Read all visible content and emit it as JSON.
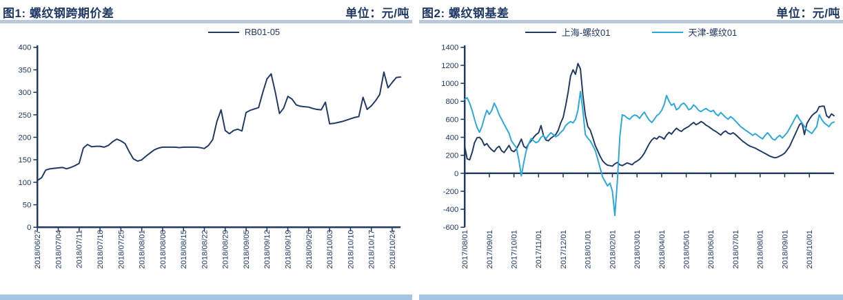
{
  "colors": {
    "axis": "#1F3864",
    "title_text": "#1F3864",
    "divider_bar": "#B9C8DB",
    "bottom_bar": "#A3C4E3",
    "navy_series": "#1F3864",
    "lightblue_series": "#29A8E0"
  },
  "charts": [
    {
      "title": "图1: 螺纹钢跨期价差",
      "unit_label": "单位：元/吨",
      "chart_data": {
        "type": "line",
        "title": "图1: 螺纹钢跨期价差",
        "unit": "元/吨",
        "ylim": [
          0,
          400
        ],
        "y_step": 50,
        "grid": false,
        "legend_position": "top-center",
        "x_tick_labels": [
          "2018/06/27",
          "2018/07/04",
          "2018/07/11",
          "2018/07/18",
          "2018/07/25",
          "2018/08/01",
          "2018/08/08",
          "2018/08/15",
          "2018/08/22",
          "2018/08/29",
          "2018/09/05",
          "2018/09/12",
          "2018/09/19",
          "2018/09/26",
          "2018/10/03",
          "2018/10/10",
          "2018/10/17",
          "2018/10/24"
        ],
        "x_tick_every": 5,
        "series": [
          {
            "name": "RB01-05",
            "color": "#1F3864",
            "values": [
              104,
              110,
              127,
              130,
              131,
              132,
              133,
              130,
              133,
              137,
              142,
              176,
              184,
              179,
              180,
              180,
              178,
              182,
              190,
              196,
              192,
              186,
              168,
              152,
              147,
              150,
              158,
              165,
              172,
              176,
              178,
              178,
              178,
              178,
              177,
              178,
              178,
              178,
              178,
              177,
              175,
              182,
              195,
              235,
              261,
              215,
              208,
              215,
              218,
              214,
              255,
              260,
              263,
              266,
              300,
              330,
              341,
              300,
              253,
              265,
              291,
              285,
              272,
              269,
              268,
              267,
              264,
              262,
              261,
              278,
              230,
              231,
              233,
              235,
              238,
              241,
              244,
              246,
              289,
              262,
              270,
              281,
              295,
              345,
              310,
              322,
              333,
              334
            ]
          }
        ]
      }
    },
    {
      "title": "图2: 螺纹钢基差",
      "unit_label": "单位：元/吨",
      "chart_data": {
        "type": "line",
        "title": "图2: 螺纹钢基差",
        "unit": "元/吨",
        "ylim": [
          -600,
          1400
        ],
        "y_step": 200,
        "grid": false,
        "legend_position": "top-center",
        "x_tick_labels": [
          "2017/08/01",
          "2017/09/01",
          "2017/10/01",
          "2017/11/01",
          "2017/12/01",
          "2018/01/01",
          "2018/02/01",
          "2018/03/01",
          "2018/04/01",
          "2018/05/01",
          "2018/06/01",
          "2018/07/01",
          "2018/08/01",
          "2018/09/01",
          "2018/10/01"
        ],
        "x_tick_every": 10,
        "series": [
          {
            "name": "上海-螺纹01",
            "color": "#1F3864",
            "values": [
              300,
              160,
              150,
              230,
              340,
              395,
              400,
              370,
              310,
              330,
              290,
              260,
              240,
              280,
              300,
              250,
              230,
              270,
              310,
              255,
              240,
              270,
              320,
              380,
              300,
              280,
              330,
              360,
              400,
              430,
              450,
              530,
              420,
              370,
              360,
              390,
              410,
              430,
              480,
              560,
              620,
              750,
              900,
              1080,
              1150,
              1100,
              1220,
              1160,
              870,
              650,
              520,
              480,
              400,
              310,
              250,
              190,
              140,
              110,
              90,
              85,
              80,
              105,
              120,
              95,
              85,
              100,
              115,
              105,
              95,
              120,
              135,
              155,
              185,
              225,
              280,
              330,
              370,
              395,
              380,
              410,
              400,
              380,
              425,
              455,
              435,
              470,
              500,
              480,
              465,
              490,
              505,
              520,
              545,
              565,
              540,
              555,
              575,
              560,
              535,
              520,
              500,
              480,
              465,
              445,
              425,
              455,
              470,
              445,
              435,
              450,
              430,
              405,
              380,
              355,
              335,
              315,
              300,
              290,
              280,
              265,
              250,
              235,
              220,
              205,
              190,
              180,
              172,
              178,
              192,
              205,
              225,
              262,
              300,
              360,
              420,
              480,
              540,
              562,
              430,
              552,
              600,
              640,
              665,
              685,
              740,
              745,
              745,
              640,
              618,
              660,
              640
            ]
          },
          {
            "name": "天津-螺纹01",
            "color": "#29A8E0",
            "values": [
              820,
              840,
              780,
              700,
              600,
              510,
              455,
              520,
              620,
              700,
              655,
              700,
              780,
              725,
              650,
              600,
              545,
              495,
              445,
              360,
              320,
              285,
              150,
              -30,
              120,
              250,
              330,
              385,
              360,
              340,
              355,
              400,
              420,
              385,
              420,
              450,
              430,
              405,
              425,
              455,
              480,
              530,
              555,
              575,
              560,
              600,
              700,
              910,
              700,
              430,
              390,
              360,
              310,
              255,
              160,
              60,
              -40,
              -90,
              -140,
              -110,
              -200,
              -470,
              -90,
              400,
              650,
              640,
              615,
              600,
              630,
              648,
              640,
              610,
              650,
              680,
              630,
              590,
              565,
              600,
              640,
              660,
              700,
              760,
              865,
              800,
              755,
              775,
              705,
              725,
              765,
              780,
              750,
              705,
              720,
              760,
              735,
              700,
              685,
              705,
              720,
              700,
              685,
              700,
              660,
              640,
              675,
              650,
              622,
              600,
              630,
              610,
              580,
              552,
              522,
              500,
              480,
              462,
              442,
              422,
              440,
              420,
              400,
              382,
              420,
              450,
              420,
              382,
              370,
              400,
              422,
              392,
              420,
              452,
              500,
              550,
              602,
              650,
              600,
              560,
              520,
              482,
              462,
              442,
              480,
              520,
              650,
              600,
              560,
              540,
              518,
              558,
              570
            ]
          }
        ]
      }
    }
  ]
}
